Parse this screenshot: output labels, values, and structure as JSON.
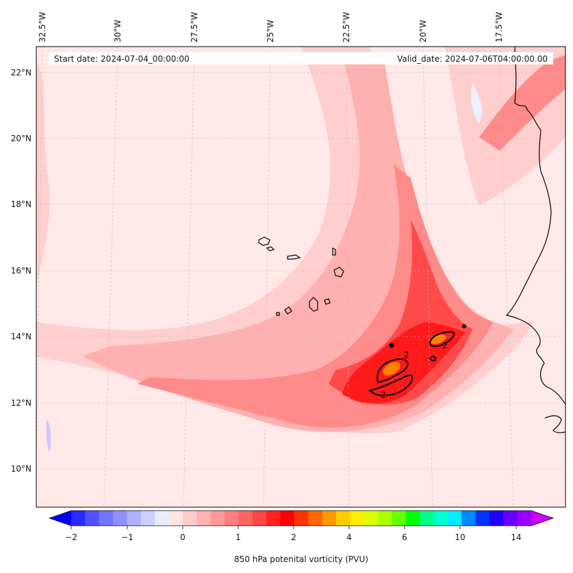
{
  "header": {
    "start_date": "Start date: 2024-07-04_00:00:00",
    "valid_date": "Valid_date: 2024-07-06T04:00:00.00"
  },
  "axes": {
    "lon_labels": [
      "32.5°W",
      "30°W",
      "27.5°W",
      "25°W",
      "22.5°W",
      "20°W",
      "17.5°W"
    ],
    "lat_labels": [
      "22°N",
      "20°N",
      "18°N",
      "16°N",
      "14°N",
      "12°N",
      "10°N"
    ]
  },
  "contour": {
    "level_label": "2"
  },
  "colorbar": {
    "ticks": [
      "−2",
      "−1",
      "0",
      "1",
      "2",
      "4",
      "6",
      "10",
      "14"
    ],
    "label": "850 hPa potenital vorticity (PVU)",
    "colors": [
      "#0000ff",
      "#2a2aff",
      "#5050ff",
      "#7373ff",
      "#9090ff",
      "#b0b0ff",
      "#d0d0ff",
      "#ececff",
      "#ffe4e4",
      "#ffcccc",
      "#ffb2b2",
      "#ff9898",
      "#ff7e7e",
      "#ff6464",
      "#ff4444",
      "#ff2222",
      "#ff0000",
      "#ff3300",
      "#ff6600",
      "#ff9900",
      "#ffcc00",
      "#ffee00",
      "#ddff00",
      "#aaff00",
      "#66ff00",
      "#00ff00",
      "#00ff88",
      "#00ffcc",
      "#00eeff",
      "#0088ff",
      "#0033ff",
      "#2200ff",
      "#6600ff",
      "#9900ff",
      "#cc00ff"
    ]
  },
  "palette": {
    "bg": "#ffe8e8",
    "light": "#ffcece",
    "mid": "#ffb0b0",
    "strong": "#ff8a8a",
    "red": "#ff4a4a",
    "deep": "#ff1a1a",
    "orange": "#ff8000",
    "blue_light": "#eef0ff",
    "blue": "#c8c8ff"
  }
}
